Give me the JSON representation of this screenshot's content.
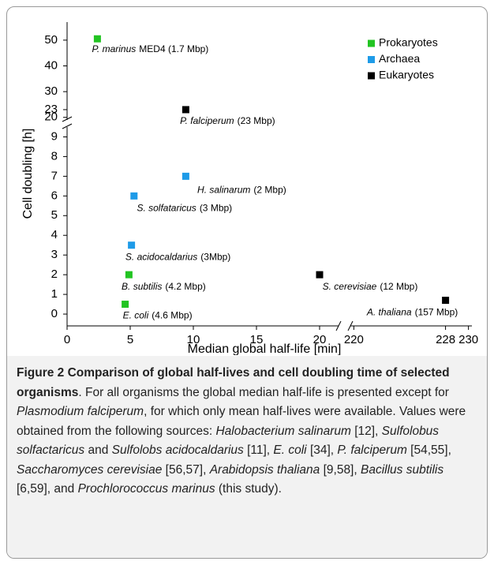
{
  "chart_data": {
    "type": "scatter",
    "xlabel": "Median global half-life [min]",
    "ylabel": "Cell doubling [h]",
    "x_segments": [
      {
        "xlim": [
          0,
          21.5
        ],
        "xticks": [
          0,
          5,
          10,
          15,
          20
        ]
      },
      {
        "xlim": [
          219.7,
          230.3
        ],
        "xticks": [
          220,
          228,
          230
        ]
      }
    ],
    "y_segments": [
      {
        "ylim": [
          -0.6,
          9.5
        ],
        "yticks": [
          0,
          1,
          2,
          3,
          4,
          5,
          6,
          7,
          8,
          9
        ]
      },
      {
        "ylim": [
          19,
          57
        ],
        "yticks": [
          20,
          23,
          30,
          40,
          50
        ]
      }
    ],
    "legend": "upper right",
    "series": [
      {
        "name": "Prokaryotes",
        "color": "#22c422",
        "x": [
          2.4,
          4.9,
          4.6
        ],
        "values": [
          50.5,
          2,
          0.5
        ],
        "labels": [
          {
            "italic": "P. marinus",
            "rest": "MED4 (1.7 Mbp)"
          },
          {
            "italic": "B. subtilis",
            "rest": "(4.2 Mbp)"
          },
          {
            "italic": "E. coli",
            "rest": "(4.6 Mbp)"
          }
        ]
      },
      {
        "name": "Archaea",
        "color": "#1e9be8",
        "x": [
          5.3,
          9.4,
          5.1
        ],
        "values": [
          6,
          7,
          3.5
        ],
        "labels": [
          {
            "italic": "S. solfataricus",
            "rest": "(3 Mbp)"
          },
          {
            "italic": "H. salinarum",
            "rest": "(2 Mbp)"
          },
          {
            "italic": "S. acidocaldarius",
            "rest": "(3Mbp)"
          }
        ]
      },
      {
        "name": "Eukaryotes",
        "color": "#000000",
        "x": [
          9.4,
          20,
          228
        ],
        "values": [
          23,
          2,
          0.7
        ],
        "labels": [
          {
            "italic": "P. falciperum",
            "rest": "(23 Mbp)"
          },
          {
            "italic": "S. cerevisiae",
            "rest": "(12 Mbp)"
          },
          {
            "italic": "A. thaliana",
            "rest": "(157 Mbp)"
          }
        ]
      }
    ]
  },
  "caption": [
    {
      "text": "Figure 2 Comparison of global half-lives and cell doubling time of selected organisms",
      "style": "bold"
    },
    {
      "text": ". For all organisms the global median half-life is presented except for ",
      "style": "normal"
    },
    {
      "text": "Plasmodium falciperum",
      "style": "italic"
    },
    {
      "text": ", for which only mean half-lives were available. Values were obtained from the following sources: ",
      "style": "normal"
    },
    {
      "text": "Halobacterium salinarum",
      "style": "italic"
    },
    {
      "text": " [12], ",
      "style": "normal"
    },
    {
      "text": "Sulfolobus solfactaricus",
      "style": "italic"
    },
    {
      "text": " and ",
      "style": "normal"
    },
    {
      "text": "Sulfolobs acidocaldarius",
      "style": "italic"
    },
    {
      "text": " [11], ",
      "style": "normal"
    },
    {
      "text": "E. coli",
      "style": "italic"
    },
    {
      "text": " [34], ",
      "style": "normal"
    },
    {
      "text": "P. falciperum",
      "style": "italic"
    },
    {
      "text": " [54,55], ",
      "style": "normal"
    },
    {
      "text": "Saccharomyces cerevisiae",
      "style": "italic"
    },
    {
      "text": " [56,57], ",
      "style": "normal"
    },
    {
      "text": "Arabidopsis thaliana",
      "style": "italic"
    },
    {
      "text": " [9,58], ",
      "style": "normal"
    },
    {
      "text": "Bacillus subtilis",
      "style": "italic"
    },
    {
      "text": " [6,59], and ",
      "style": "normal"
    },
    {
      "text": "Prochlorococcus marinus",
      "style": "italic"
    },
    {
      "text": " (this study).",
      "style": "normal"
    }
  ]
}
